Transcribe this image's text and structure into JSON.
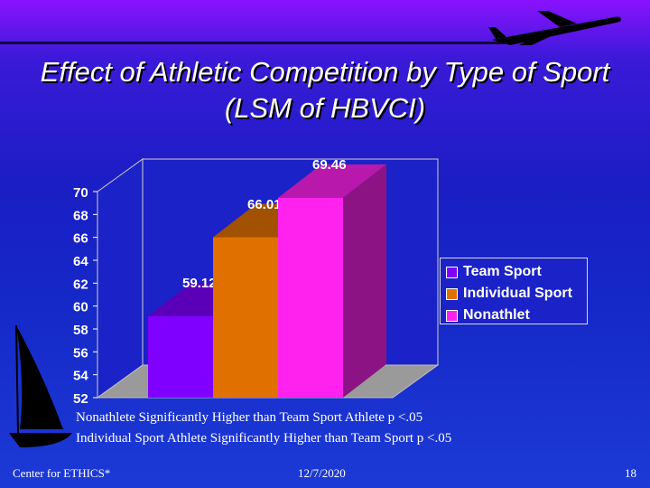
{
  "slide": {
    "title": "Effect of Athletic Competition by Type of Sport (LSM of HBVCI)",
    "notes": [
      "Nonathlete Significantly Higher than Team Sport Athlete p <.05",
      "Individual Sport Athlete Significantly Higher than Team Sport p <.05"
    ],
    "footer": {
      "left": "Center for ETHICS*",
      "center": "12/7/2020",
      "right": "18"
    }
  },
  "chart_data": {
    "type": "bar",
    "ylim": [
      52,
      70
    ],
    "yticks": [
      "70",
      "68",
      "66",
      "64",
      "62",
      "60",
      "58",
      "56",
      "54",
      "52"
    ],
    "legend_position": "right",
    "series": [
      {
        "name": "Team Sport",
        "value": 59.12,
        "label": "59.12",
        "color": "#7f00ff"
      },
      {
        "name": "Individual Sport",
        "value": 66.01,
        "label": "66.01",
        "color": "#e07000"
      },
      {
        "name": "Nonathlet",
        "value": 69.46,
        "label": "69.46",
        "color": "#ff22ee"
      }
    ]
  }
}
